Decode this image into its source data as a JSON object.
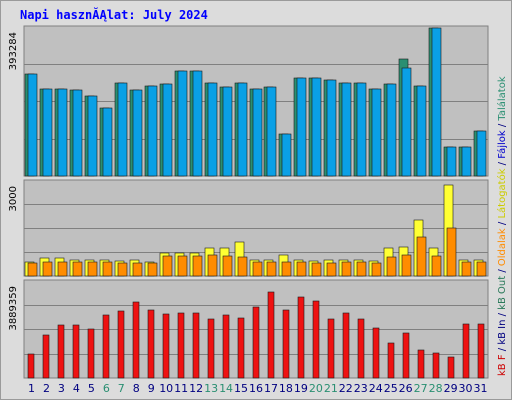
{
  "title": "Napi hasznĂĄlat: July 2024",
  "chart_data": [
    {
      "type": "bar",
      "panel": "top",
      "ytick_label": "393284",
      "ylim": [
        0,
        393284
      ],
      "categories": [
        "1",
        "2",
        "3",
        "4",
        "5",
        "6",
        "7",
        "8",
        "9",
        "10",
        "11",
        "12",
        "13",
        "14",
        "15",
        "16",
        "17",
        "18",
        "19",
        "20",
        "21",
        "22",
        "23",
        "24",
        "25",
        "26",
        "27",
        "28",
        "29",
        "30",
        "31"
      ],
      "series": [
        {
          "name": "Találatok",
          "color": "#2a8f72",
          "values": [
            272000,
            232000,
            232000,
            228000,
            212000,
            180000,
            248000,
            228000,
            240000,
            244000,
            280000,
            280000,
            248000,
            236000,
            248000,
            232000,
            236000,
            112000,
            260000,
            260000,
            256000,
            248000,
            248000,
            232000,
            244000,
            312000,
            240000,
            393284,
            76000,
            76000,
            120000
          ]
        },
        {
          "name": "Fájlok",
          "color": "#0aa0e6",
          "values": [
            272000,
            232000,
            232000,
            228000,
            212000,
            180000,
            248000,
            228000,
            240000,
            244000,
            280000,
            280000,
            248000,
            236000,
            248000,
            232000,
            236000,
            112000,
            260000,
            260000,
            256000,
            248000,
            248000,
            232000,
            244000,
            288000,
            240000,
            393284,
            76000,
            76000,
            120000
          ]
        }
      ],
      "grid": true
    },
    {
      "type": "bar",
      "panel": "middle",
      "ytick_label": "3000",
      "ylim": [
        0,
        3000
      ],
      "categories": [
        "1",
        "2",
        "3",
        "4",
        "5",
        "6",
        "7",
        "8",
        "9",
        "10",
        "11",
        "12",
        "13",
        "14",
        "15",
        "16",
        "17",
        "18",
        "19",
        "20",
        "21",
        "22",
        "23",
        "24",
        "25",
        "26",
        "27",
        "28",
        "29",
        "30",
        "31"
      ],
      "series": [
        {
          "name": "Látogatók",
          "color": "#ffff33",
          "values": [
            440,
            560,
            560,
            520,
            520,
            520,
            480,
            520,
            440,
            720,
            720,
            720,
            880,
            880,
            1080,
            520,
            520,
            660,
            520,
            480,
            520,
            520,
            520,
            480,
            880,
            920,
            1800,
            880,
            2900,
            520,
            520
          ]
        },
        {
          "name": "Oldalak",
          "color": "#ff8c00",
          "values": [
            400,
            440,
            440,
            440,
            440,
            440,
            400,
            400,
            400,
            640,
            640,
            640,
            680,
            640,
            600,
            440,
            440,
            440,
            440,
            400,
            400,
            440,
            440,
            400,
            600,
            680,
            1240,
            640,
            1540,
            440,
            440
          ]
        }
      ],
      "grid": true
    },
    {
      "type": "bar",
      "panel": "bottom",
      "ytick_label": "3889359",
      "ylim": [
        0,
        3889359
      ],
      "categories": [
        "1",
        "2",
        "3",
        "4",
        "5",
        "6",
        "7",
        "8",
        "9",
        "10",
        "11",
        "12",
        "13",
        "14",
        "15",
        "16",
        "17",
        "18",
        "19",
        "20",
        "21",
        "22",
        "23",
        "24",
        "25",
        "26",
        "27",
        "28",
        "29",
        "30",
        "31"
      ],
      "series": [
        {
          "name": "kB F",
          "color": "#ee1111",
          "values": [
            960000,
            1740000,
            2140000,
            2160000,
            1980000,
            2560000,
            2700000,
            3080000,
            2740000,
            2580000,
            2640000,
            2620000,
            2380000,
            2560000,
            2440000,
            2860000,
            3500000,
            2740000,
            3280000,
            3100000,
            2380000,
            2640000,
            2400000,
            2040000,
            1400000,
            1820000,
            1120000,
            1000000,
            840000,
            2180000,
            2200000
          ]
        }
      ],
      "grid": true
    }
  ],
  "side_legend": [
    {
      "text": "kB F",
      "color": "#cc0000"
    },
    {
      "text": " / ",
      "color": "#000080"
    },
    {
      "text": "kB In",
      "color": "#00007f"
    },
    {
      "text": " / ",
      "color": "#000080"
    },
    {
      "text": "kB Out",
      "color": "#2a7a5a"
    },
    {
      "text": " / ",
      "color": "#000080"
    },
    {
      "text": "Oldalak",
      "color": "#ff8c00"
    },
    {
      "text": " / ",
      "color": "#000080"
    },
    {
      "text": "Látogatók",
      "color": "#cccc00"
    },
    {
      "text": " / ",
      "color": "#000080"
    },
    {
      "text": "Fájlok",
      "color": "#0000cc"
    },
    {
      "text": " / ",
      "color": "#000080"
    },
    {
      "text": "Találatok",
      "color": "#2a8f72"
    }
  ],
  "weekend_days": [
    "6",
    "7",
    "13",
    "14",
    "20",
    "21",
    "27",
    "28"
  ],
  "colors": {
    "panel_bg": "#c0c0c0",
    "frame_bg": "#dcdcdc",
    "grid": "#808080",
    "title": "#0000ff",
    "weekday_label": "#000080",
    "weekend_label": "#2a8f72"
  }
}
